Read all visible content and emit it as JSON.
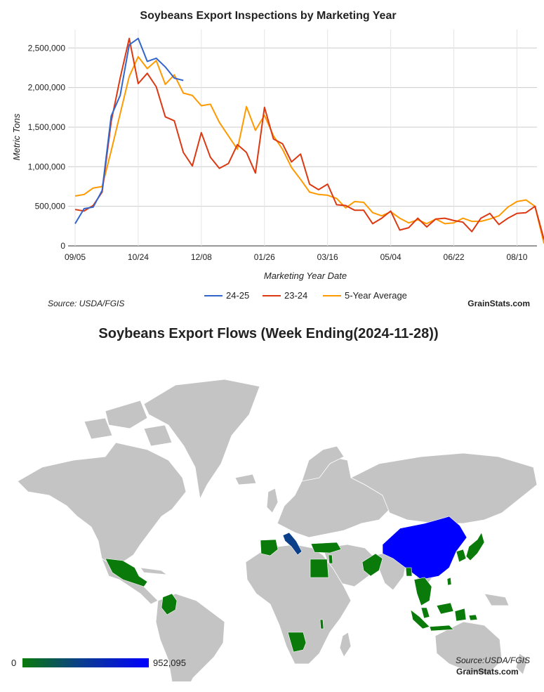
{
  "line_chart": {
    "source": "Source: USDA/FGIS",
    "brand": "GrainStats.com"
  },
  "map": {
    "title": "Soybeans Export Flows (Week Ending(2024-11-28))",
    "source": "Source:USDA/FGIS",
    "brand": "GrainStats.com",
    "scale_min": "0",
    "scale_max": "952,095",
    "colors": {
      "land": "#c4c4c4",
      "low": "#0a7a0a",
      "mid": "#0b3f8a",
      "high": "#0000ff"
    },
    "highlighted_regions": [
      {
        "name": "China",
        "level": "high"
      },
      {
        "name": "Italy",
        "level": "mid"
      },
      {
        "name": "Mexico",
        "level": "low"
      },
      {
        "name": "Colombia",
        "level": "low"
      },
      {
        "name": "Spain",
        "level": "low"
      },
      {
        "name": "Turkey",
        "level": "low"
      },
      {
        "name": "Egypt",
        "level": "low"
      },
      {
        "name": "Pakistan",
        "level": "low"
      },
      {
        "name": "Bangladesh",
        "level": "low"
      },
      {
        "name": "Japan",
        "level": "low"
      },
      {
        "name": "South Korea",
        "level": "low"
      },
      {
        "name": "Taiwan",
        "level": "low"
      },
      {
        "name": "Vietnam",
        "level": "low"
      },
      {
        "name": "Thailand",
        "level": "low"
      },
      {
        "name": "Malaysia",
        "level": "low"
      },
      {
        "name": "Indonesia",
        "level": "low"
      },
      {
        "name": "Namibia",
        "level": "low"
      },
      {
        "name": "Malawi",
        "level": "low"
      },
      {
        "name": "Israel",
        "level": "low"
      }
    ]
  },
  "chart_data": {
    "type": "line",
    "title": "Soybeans Export Inspections by Marketing Year",
    "xlabel": "Marketing Year Date",
    "ylabel": "Metric Tons",
    "ylim": [
      0,
      2600000
    ],
    "yticks": [
      0,
      500000,
      1000000,
      1500000,
      2000000,
      2500000
    ],
    "ytick_labels": [
      "0",
      "500,000",
      "1,000,000",
      "1,500,000",
      "2,000,000",
      "2,500,000"
    ],
    "xtick_labels": [
      "09/05",
      "10/24",
      "12/08",
      "01/26",
      "03/16",
      "05/04",
      "06/22",
      "08/10"
    ],
    "xtick_positions": [
      0,
      7,
      14,
      21,
      28,
      35,
      42,
      49
    ],
    "grid": true,
    "legend": "bottom",
    "series": [
      {
        "name": "24-25",
        "color": "#3366cc",
        "values": [
          280000,
          470000,
          490000,
          700000,
          1640000,
          1900000,
          2540000,
          2620000,
          2330000,
          2370000,
          2260000,
          2120000,
          2090000
        ]
      },
      {
        "name": "23-24",
        "color": "#dc3912",
        "values": [
          460000,
          440000,
          510000,
          680000,
          1570000,
          2120000,
          2620000,
          2050000,
          2180000,
          2010000,
          1630000,
          1580000,
          1180000,
          1010000,
          1430000,
          1120000,
          980000,
          1040000,
          1280000,
          1180000,
          920000,
          1750000,
          1350000,
          1290000,
          1060000,
          1160000,
          780000,
          710000,
          780000,
          520000,
          510000,
          450000,
          450000,
          280000,
          350000,
          440000,
          200000,
          230000,
          350000,
          240000,
          340000,
          350000,
          320000,
          300000,
          180000,
          350000,
          410000,
          270000,
          350000,
          410000,
          420000,
          500000,
          80000
        ]
      },
      {
        "name": "5-Year Average",
        "color": "#ff9900",
        "values": [
          630000,
          650000,
          730000,
          750000,
          1200000,
          1670000,
          2140000,
          2390000,
          2240000,
          2340000,
          2040000,
          2160000,
          1930000,
          1900000,
          1770000,
          1790000,
          1560000,
          1390000,
          1220000,
          1760000,
          1460000,
          1650000,
          1390000,
          1220000,
          990000,
          840000,
          680000,
          650000,
          640000,
          600000,
          480000,
          560000,
          550000,
          420000,
          380000,
          430000,
          350000,
          290000,
          330000,
          280000,
          340000,
          280000,
          290000,
          350000,
          310000,
          310000,
          340000,
          380000,
          490000,
          560000,
          580000,
          500000,
          30000
        ]
      }
    ]
  }
}
